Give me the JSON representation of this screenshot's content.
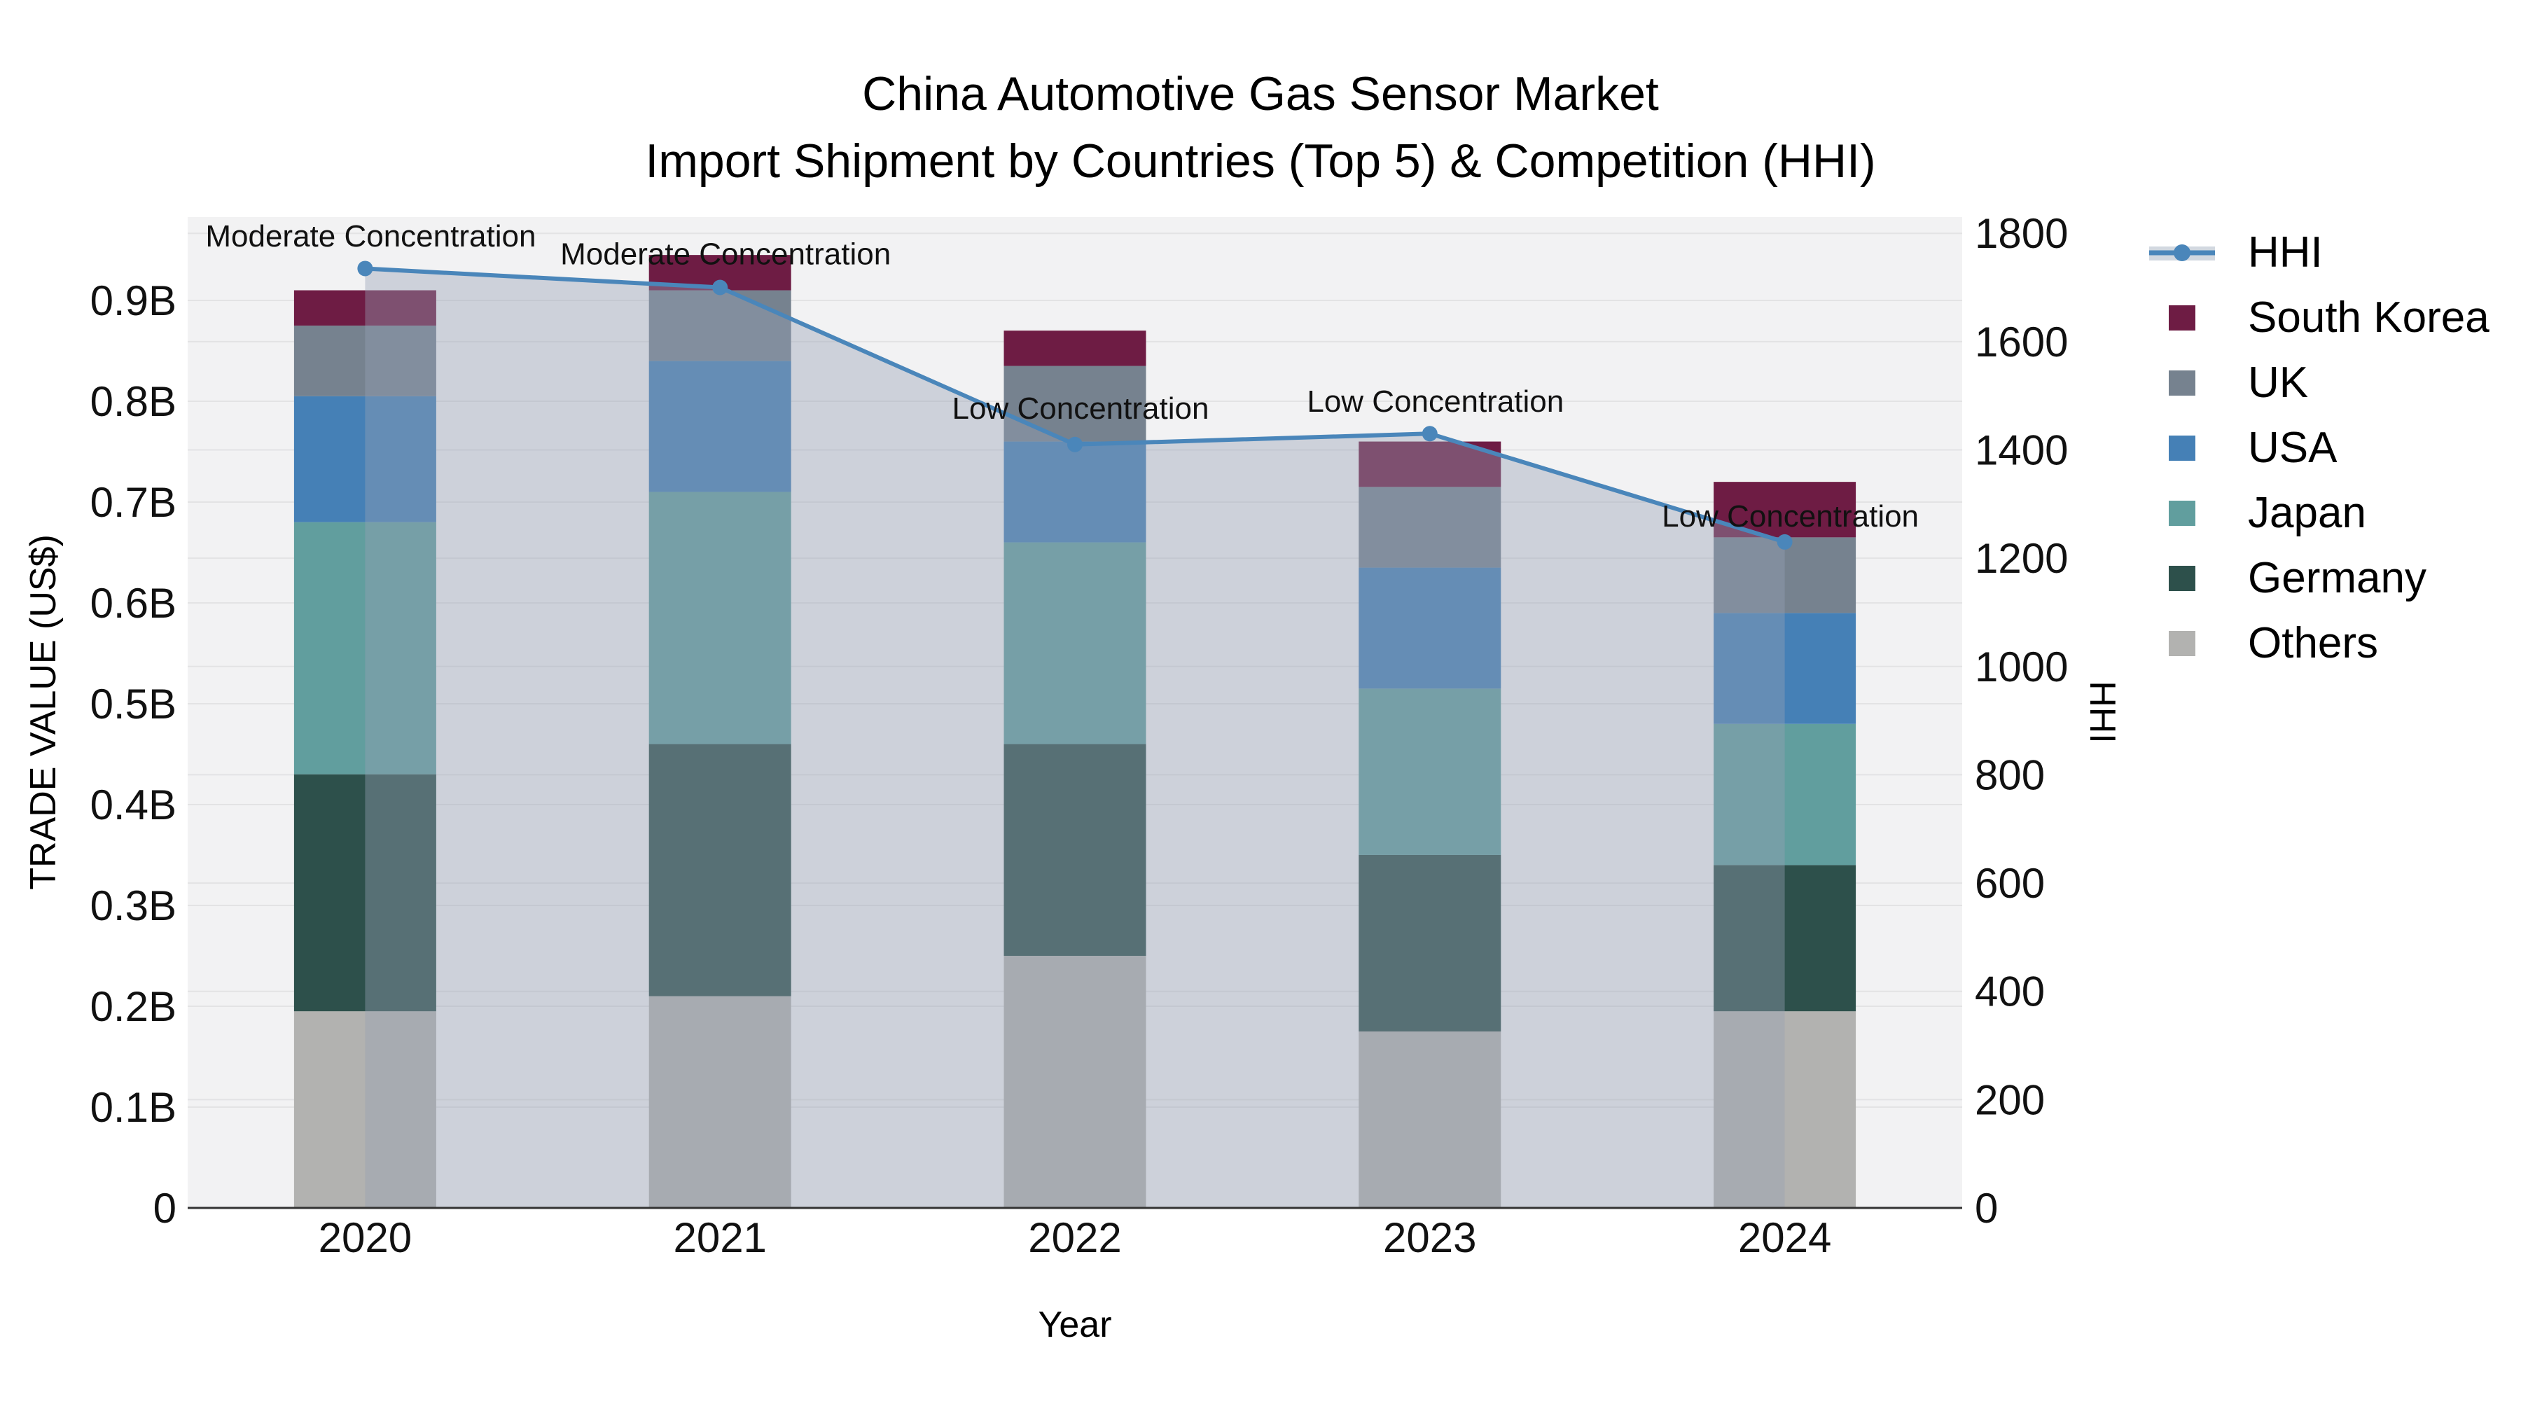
{
  "chart_data": {
    "type": "bar+line",
    "title1": "China Automotive Gas Sensor Market",
    "title2": "Import Shipment by Countries (Top 5) & Competition (HHI)",
    "xlabel": "Year",
    "categories": [
      "2020",
      "2021",
      "2022",
      "2023",
      "2024"
    ],
    "left_axis": {
      "label": "TRADE VALUE (US$)",
      "tick_values": [
        0,
        0.1,
        0.2,
        0.3,
        0.4,
        0.5,
        0.6,
        0.7,
        0.8,
        0.9
      ],
      "tick_labels": [
        "0",
        "0.1B",
        "0.2B",
        "0.3B",
        "0.4B",
        "0.5B",
        "0.6B",
        "0.7B",
        "0.8B",
        "0.9B"
      ],
      "max": 0.9826,
      "unit": "B US$"
    },
    "right_axis": {
      "label": "HHI",
      "tick_values": [
        0,
        200,
        400,
        600,
        800,
        1000,
        1200,
        1400,
        1600,
        1800
      ],
      "tick_labels": [
        "0",
        "200",
        "400",
        "600",
        "800",
        "1000",
        "1200",
        "1400",
        "1600",
        "1800"
      ],
      "max": 1830
    },
    "series": [
      {
        "name": "Others",
        "color": "#b2b2b0",
        "values": [
          0.195,
          0.21,
          0.25,
          0.175,
          0.195
        ]
      },
      {
        "name": "Germany",
        "color": "#2d504b",
        "values": [
          0.235,
          0.25,
          0.21,
          0.175,
          0.145
        ]
      },
      {
        "name": "Japan",
        "color": "#619e9e",
        "values": [
          0.25,
          0.25,
          0.2,
          0.165,
          0.14
        ]
      },
      {
        "name": "USA",
        "color": "#4580b6",
        "values": [
          0.125,
          0.13,
          0.1,
          0.12,
          0.11
        ]
      },
      {
        "name": "UK",
        "color": "#76828f",
        "values": [
          0.07,
          0.07,
          0.075,
          0.08,
          0.075
        ]
      },
      {
        "name": "South Korea",
        "color": "#6e1c44",
        "values": [
          0.035,
          0.035,
          0.035,
          0.045,
          0.055
        ]
      }
    ],
    "totals": [
      0.91,
      0.945,
      0.87,
      0.76,
      0.72
    ],
    "line": {
      "name": "HHI",
      "color": "#4a86ba",
      "fill_color": "rgba(150,160,180,0.40)",
      "values": [
        1735,
        1700,
        1410,
        1430,
        1230
      ]
    },
    "annotations": [
      {
        "text": "Moderate Concentration",
        "xi": 0,
        "y": 1795
      },
      {
        "text": "Moderate Concentration",
        "xi": 1,
        "y": 1762
      },
      {
        "text": "Low Concentration",
        "xi": 2,
        "y": 1477
      },
      {
        "text": "Low Concentration",
        "xi": 3,
        "y": 1490
      },
      {
        "text": "Low Concentration",
        "xi": 4,
        "y": 1278
      }
    ],
    "legend_items": [
      {
        "label": "HHI",
        "swatch": "line",
        "color": "#4a86ba",
        "band_color": "#d2d8e0"
      },
      {
        "label": "South Korea",
        "swatch": "box",
        "color": "#6e1c44"
      },
      {
        "label": "UK",
        "swatch": "box",
        "color": "#76828f"
      },
      {
        "label": "USA",
        "swatch": "box",
        "color": "#4580b6"
      },
      {
        "label": "Japan",
        "swatch": "box",
        "color": "#619e9e"
      },
      {
        "label": "Germany",
        "swatch": "box",
        "color": "#2d504b"
      },
      {
        "label": "Others",
        "swatch": "box",
        "color": "#b2b2b0"
      }
    ],
    "style": {
      "plot_bg": "#f2f2f3",
      "grid": "#e3e3e4",
      "spine": "#333333",
      "text": "#111111"
    }
  }
}
